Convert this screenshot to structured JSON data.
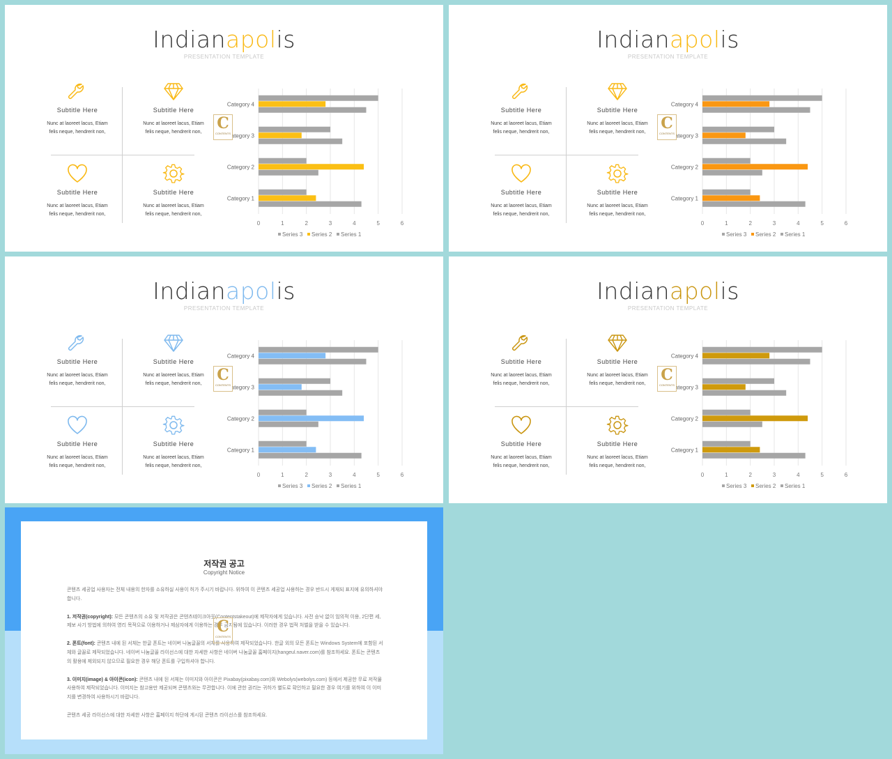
{
  "slides": [
    {
      "title_main": "Indian",
      "title_accent": "apol",
      "title_end": "is",
      "subtitle": "PRESENTATION TEMPLATE",
      "accent": "#f9b813",
      "bar_color": "#fbbf14",
      "features": [
        {
          "icon": "wrench-icon",
          "title": "Subtitle  Here",
          "desc1": "Nunc  at laoreet  lacus,  Etiam",
          "desc2": "felis  neque,  hendrerit  non,"
        },
        {
          "icon": "diamond-icon",
          "title": "Subtitle  Here",
          "desc1": "Nunc  at laoreet  lacus,  Etiam",
          "desc2": "felis  neque,  hendrerit  non,"
        },
        {
          "icon": "heart-icon",
          "title": "Subtitle  Here",
          "desc1": "Nunc  at laoreet  lacus,  Etiam",
          "desc2": "felis  neque,  hendrerit  non,"
        },
        {
          "icon": "gear-icon",
          "title": "Subtitle  Here",
          "desc1": "Nunc  at laoreet  lacus,  Etiam",
          "desc2": "felis  neque,  hendrerit  non,"
        }
      ]
    },
    {
      "title_main": "Indian",
      "title_accent": "apol",
      "title_end": "is",
      "subtitle": "PRESENTATION TEMPLATE",
      "accent": "#f9b813",
      "bar_color": "#fa9712",
      "features": [
        {
          "icon": "wrench-icon",
          "title": "Subtitle  Here",
          "desc1": "Nunc  at laoreet  lacus,  Etiam",
          "desc2": "felis  neque,  hendrerit  non,"
        },
        {
          "icon": "diamond-icon",
          "title": "Subtitle  Here",
          "desc1": "Nunc  at laoreet  lacus,  Etiam",
          "desc2": "felis  neque,  hendrerit  non,"
        },
        {
          "icon": "heart-icon",
          "title": "Subtitle  Here",
          "desc1": "Nunc  at laoreet  lacus,  Etiam",
          "desc2": "felis  neque,  hendrerit  non,"
        },
        {
          "icon": "gear-icon",
          "title": "Subtitle  Here",
          "desc1": "Nunc  at laoreet  lacus,  Etiam",
          "desc2": "felis  neque,  hendrerit  non,"
        }
      ]
    },
    {
      "title_main": "Indian",
      "title_accent": "apol",
      "title_end": "is",
      "subtitle": "PRESENTATION TEMPLATE",
      "accent": "#7eb9ee",
      "bar_color": "#83bdf5",
      "features": [
        {
          "icon": "wrench-icon",
          "title": "Subtitle  Here",
          "desc1": "Nunc  at laoreet  lacus,  Etiam",
          "desc2": "felis  neque,  hendrerit  non,"
        },
        {
          "icon": "diamond-icon",
          "title": "Subtitle  Here",
          "desc1": "Nunc  at laoreet  lacus,  Etiam",
          "desc2": "felis  neque,  hendrerit  non,"
        },
        {
          "icon": "heart-icon",
          "title": "Subtitle  Here",
          "desc1": "Nunc  at laoreet  lacus,  Etiam",
          "desc2": "felis  neque,  hendrerit  non,"
        },
        {
          "icon": "gear-icon",
          "title": "Subtitle  Here",
          "desc1": "Nunc  at laoreet  lacus,  Etiam",
          "desc2": "felis  neque,  hendrerit  non,"
        }
      ]
    },
    {
      "title_main": "Indian",
      "title_accent": "apol",
      "title_end": "is",
      "subtitle": "PRESENTATION TEMPLATE",
      "accent": "#c9950f",
      "bar_color": "#cf9a0c",
      "features": [
        {
          "icon": "wrench-icon",
          "title": "Subtitle  Here",
          "desc1": "Nunc  at laoreet  lacus,  Etiam",
          "desc2": "felis  neque,  hendrerit  non,"
        },
        {
          "icon": "diamond-icon",
          "title": "Subtitle  Here",
          "desc1": "Nunc  at laoreet  lacus,  Etiam",
          "desc2": "felis  neque,  hendrerit  non,"
        },
        {
          "icon": "heart-icon",
          "title": "Subtitle  Here",
          "desc1": "Nunc  at laoreet  lacus,  Etiam",
          "desc2": "felis  neque,  hendrerit  non,"
        },
        {
          "icon": "gear-icon",
          "title": "Subtitle  Here",
          "desc1": "Nunc  at laoreet  lacus,  Etiam",
          "desc2": "felis  neque,  hendrerit  non,"
        }
      ]
    }
  ],
  "logo": {
    "letter": "C",
    "text": "CONTENTS"
  },
  "grey_color": "#a6a6a6",
  "chart_data": {
    "type": "bar",
    "orientation": "horizontal",
    "categories": [
      "Category 1",
      "Category 2",
      "Category 3",
      "Category 4"
    ],
    "series": [
      {
        "name": "Series 3",
        "values": [
          2,
          2,
          3,
          5
        ]
      },
      {
        "name": "Series 2",
        "values": [
          2.4,
          4.4,
          1.8,
          2.8
        ]
      },
      {
        "name": "Series 1",
        "values": [
          4.3,
          2.5,
          3.5,
          4.5
        ]
      }
    ],
    "xlim": [
      0,
      6
    ],
    "xticks": [
      "0",
      "1",
      "2",
      "3",
      "4",
      "5",
      "6"
    ],
    "grid": true,
    "legend": "bottom"
  },
  "notice": {
    "title": "저작권 공고",
    "subtitle": "Copyright Notice",
    "intro": "콘텐츠 세공업 사용자는 전체 내용의 한자를 소유하실 사용이 허가 주시기 바랍니다. 위하여 이 콘텐츠 세공업 사용하는 경우 반드시 게재되 표지에 유의하셔야 합니다.",
    "p1_label": "1. 저작권(copyright):",
    "p1": " 모든 콘텐츠의 소유 및 저작권은 콘텐츠테이크아웃(Contentstakeout)에 제작자에게 있습니다. 사전 승낙 없이 임의적 이용, 2단편 세, 제보 사기 방법에 의하여 영리 목적으로 이용하거나 제삼자에게 이용하는 경우 금지됨에 있습니다. 이러한 경우 법적 처벌을 받을 수 있습니다.",
    "p2_label": "2. 폰트(font):",
    "p2": " 콘텐츠 내에 된 서체는 한글 폰트는 네이버 나눔글꼴의 서체를 사용하여 제작되었습니다. 한글 외의 모든 폰트는 Windows System에 포함된 서체와 글꼴로 제작되었습니다. 네이버 나눔글꼴 라이선스에 대한 자세한 사항은 네이버 나눔글꼴 홈페이지(hangeul.naver.com)를 참조하세요. 폰트는 콘텐츠의 활용에 제외되지 않으므로 필요한 경우 해당 폰트를 구입하셔야 합니다.",
    "p3_label": "3. 이미지(image) & 아이콘(icon):",
    "p3": " 콘텐츠 내에 된 서체는 이미지와 아이콘은 Pixabay(pixabay.com)와 Webolys(webolys.com) 등에서 제공한 무료 저작물 사용하여 제작되었습니다. 이미지는 참고용만 제공되며 콘텐츠와는 무관합니다. 이에 관한 권리는 귀하가 별도로 확인하고 필요한 경우 여기를 위하여 이 이미지를 변경하여 사용하시기 바랍니다.",
    "outro": "콘텐츠 세공 라이선스에 대한 자세한 사항은 홈페이지 하단에 게시된 콘텐츠 라이선스를 참조하세요."
  }
}
